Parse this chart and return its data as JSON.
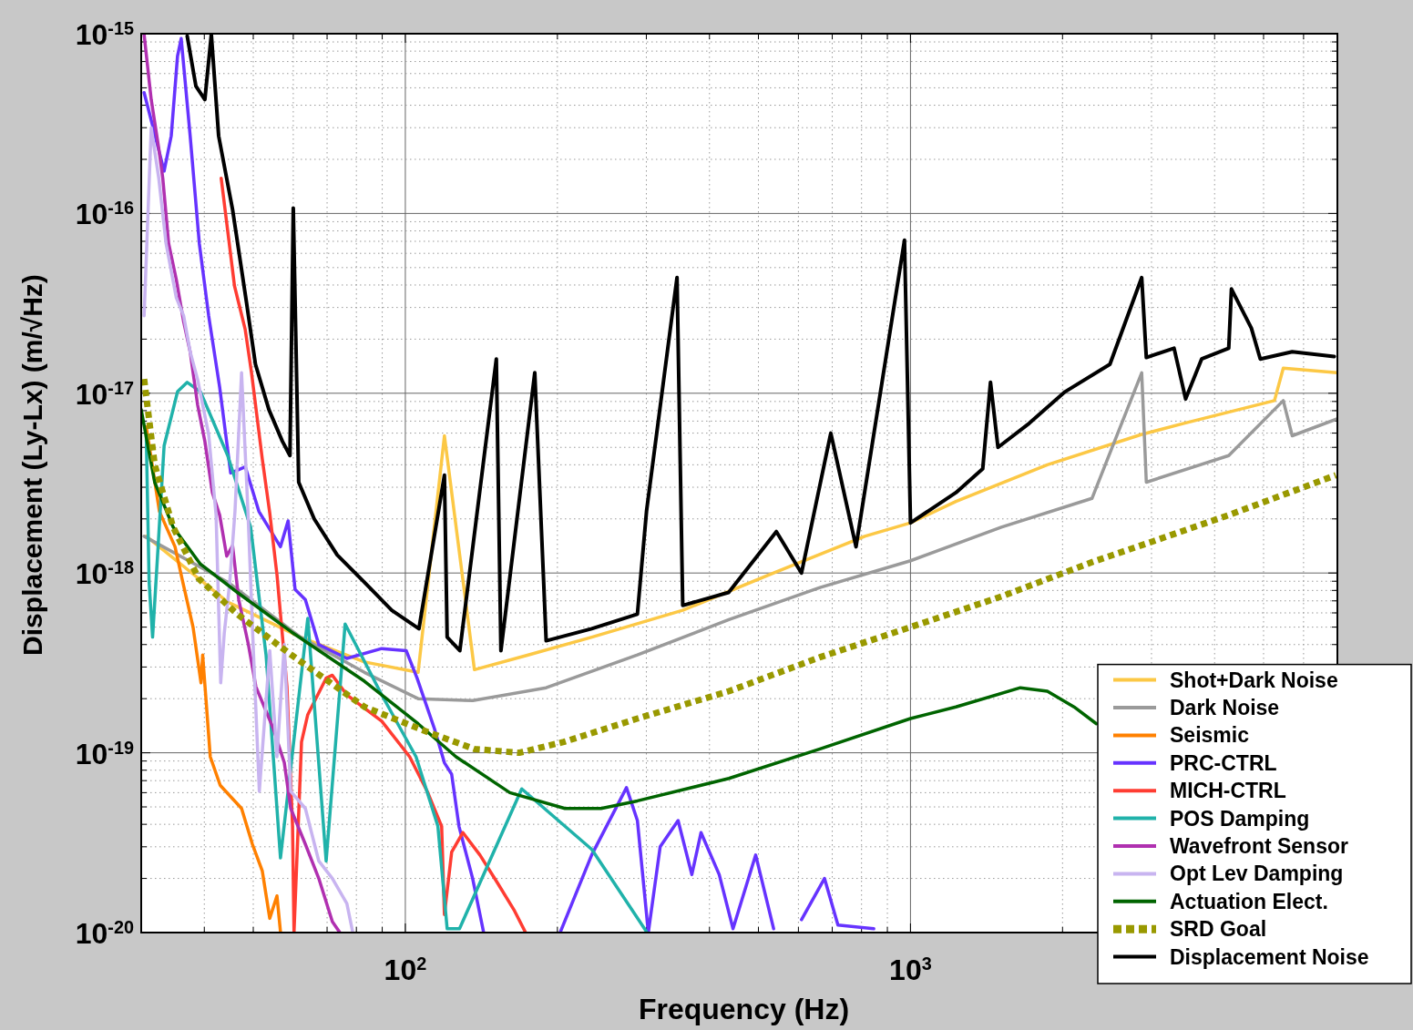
{
  "chart_data": {
    "type": "line",
    "xlabel": "Frequency (Hz)",
    "ylabel": "Displacement (Ly-Lx) (m/√Hz)",
    "log": "xy",
    "grid": true,
    "legend": "bottom right",
    "xlim": [
      30,
      7000
    ],
    "ylim": [
      1e-20,
      1e-15
    ],
    "xticks": [
      {
        "value": 40,
        "label": null
      },
      {
        "value": 50,
        "label": null
      },
      {
        "value": 60,
        "label": null
      },
      {
        "value": 70,
        "label": null
      },
      {
        "value": 80,
        "label": null
      },
      {
        "value": 90,
        "label": null
      },
      {
        "value": 100,
        "label": "10$^{2}$"
      },
      {
        "value": 200,
        "label": null
      },
      {
        "value": 300,
        "label": null
      },
      {
        "value": 400,
        "label": null
      },
      {
        "value": 500,
        "label": null
      },
      {
        "value": 600,
        "label": null
      },
      {
        "value": 700,
        "label": null
      },
      {
        "value": 800,
        "label": null
      },
      {
        "value": 900,
        "label": null
      },
      {
        "value": 1000,
        "label": "10$^{3}$"
      },
      {
        "value": 2000,
        "label": null
      },
      {
        "value": 3000,
        "label": null
      },
      {
        "value": 4000,
        "label": null
      },
      {
        "value": 5000,
        "label": null
      },
      {
        "value": 6000,
        "label": null
      },
      {
        "value": 7000,
        "label": null
      }
    ],
    "yticks": [
      {
        "value": 1e-20,
        "label": "10$^{-20}$"
      },
      {
        "value": 2e-20,
        "label": null
      },
      {
        "value": 3e-20,
        "label": null
      },
      {
        "value": 4e-20,
        "label": null
      },
      {
        "value": 5e-20,
        "label": null
      },
      {
        "value": 6e-20,
        "label": null
      },
      {
        "value": 7e-20,
        "label": null
      },
      {
        "value": 8e-20,
        "label": null
      },
      {
        "value": 9e-20,
        "label": null
      },
      {
        "value": 1e-19,
        "label": "10$^{-19}$"
      },
      {
        "value": 2e-19,
        "label": null
      },
      {
        "value": 3e-19,
        "label": null
      },
      {
        "value": 4e-19,
        "label": null
      },
      {
        "value": 5e-19,
        "label": null
      },
      {
        "value": 6e-19,
        "label": null
      },
      {
        "value": 7e-19,
        "label": null
      },
      {
        "value": 8e-19,
        "label": null
      },
      {
        "value": 9e-19,
        "label": null
      },
      {
        "value": 1e-18,
        "label": "10$^{-18}$"
      },
      {
        "value": 2e-18,
        "label": null
      },
      {
        "value": 3e-18,
        "label": null
      },
      {
        "value": 4e-18,
        "label": null
      },
      {
        "value": 5e-18,
        "label": null
      },
      {
        "value": 6e-18,
        "label": null
      },
      {
        "value": 7e-18,
        "label": null
      },
      {
        "value": 8e-18,
        "label": null
      },
      {
        "value": 9e-18,
        "label": null
      },
      {
        "value": 1e-17,
        "label": "10$^{-17}$"
      },
      {
        "value": 2e-17,
        "label": null
      },
      {
        "value": 3e-17,
        "label": null
      },
      {
        "value": 4e-17,
        "label": null
      },
      {
        "value": 5e-17,
        "label": null
      },
      {
        "value": 6e-17,
        "label": null
      },
      {
        "value": 7e-17,
        "label": null
      },
      {
        "value": 8e-17,
        "label": null
      },
      {
        "value": 9e-17,
        "label": null
      },
      {
        "value": 1e-16,
        "label": "10$^{-16}$"
      },
      {
        "value": 2e-16,
        "label": null
      },
      {
        "value": 3e-16,
        "label": null
      },
      {
        "value": 4e-16,
        "label": null
      },
      {
        "value": 5e-16,
        "label": null
      },
      {
        "value": 6e-16,
        "label": null
      },
      {
        "value": 7e-16,
        "label": null
      },
      {
        "value": 8e-16,
        "label": null
      },
      {
        "value": 9e-16,
        "label": null
      },
      {
        "value": 1e-15,
        "label": "10$^{-15}$"
      }
    ],
    "series": [
      {
        "name": "Shot+Dark Noise",
        "color": "#fcc845",
        "x": [
          30.7,
          44.5,
          62,
          83,
          106,
          119.5,
          137,
          175,
          234,
          354,
          536,
          812,
          1000,
          1230,
          1866,
          2869,
          3477,
          5255,
          5470,
          6990
        ],
        "values": [
          1.6e-18,
          6.9e-19,
          4.4e-19,
          3.2e-19,
          2.8e-19,
          5.8e-18,
          2.9e-19,
          3.5e-19,
          4.4e-19,
          6.2e-19,
          1e-18,
          1.6e-18,
          1.9e-18,
          2.5e-18,
          4e-18,
          5.9e-18,
          6.8e-18,
          9.1e-18,
          1.38e-17,
          1.3e-17
        ]
      },
      {
        "name": "Dark Noise",
        "color": "#9a9a9a",
        "x": [
          30.4,
          44.5,
          62,
          83,
          106,
          136,
          190,
          288,
          437,
          662,
          1000,
          1513,
          2287,
          2869,
          2930,
          4266,
          5470,
          5698,
          6990
        ],
        "values": [
          1.6e-18,
          8.9e-19,
          4.4e-19,
          2.8e-19,
          2e-19,
          1.95e-19,
          2.3e-19,
          3.5e-19,
          5.5e-19,
          8.3e-19,
          1.17e-18,
          1.8e-18,
          2.6e-18,
          1.3e-17,
          3.2e-18,
          4.5e-18,
          9.1e-18,
          5.8e-18,
          7.2e-18
        ]
      },
      {
        "name": "Seismic",
        "color": "#ff8000",
        "x": [
          30.7,
          32.6,
          35,
          36.2,
          38,
          39.4,
          39.7,
          41.1,
          43,
          47.4,
          49.8,
          52.1,
          53.9,
          55.7,
          56.6
        ],
        "values": [
          6.5e-18,
          2.2e-18,
          1.4e-18,
          9.1e-19,
          5e-19,
          2.45e-19,
          3.5e-19,
          9.5e-20,
          6.6e-20,
          4.9e-20,
          3.1e-20,
          2.2e-20,
          1.2e-20,
          1.6e-20,
          1.01e-20
        ]
      },
      {
        "name": "PRC-CTRL",
        "color": "#6633ff",
        "x": [
          30.4,
          31.4,
          33.3,
          34.4,
          35.4,
          36,
          37.5,
          39.1,
          40.8,
          42.9,
          45.1,
          48.2,
          51.3,
          56.6,
          58.6,
          60.5,
          63.4,
          67.4,
          76.6,
          89.8,
          100.4,
          105.5,
          114.2,
          119.5,
          123.5,
          127.7,
          135.9,
          142.9,
          170,
          202.5,
          233.8,
          274,
          288,
          302.7,
          319.5,
          346.7,
          369.1,
          384.9,
          418.2,
          445.3,
          493.8,
          535.9,
          570,
          608.5,
          675.7,
          718.5,
          846
        ],
        "values": [
          4.7e-16,
          3.3e-16,
          1.72e-16,
          2.7e-16,
          7.5e-16,
          9.4e-16,
          2.7e-16,
          6.8e-17,
          2.7e-17,
          1.08e-17,
          3.6e-18,
          3.9e-18,
          2.2e-18,
          1.4e-18,
          1.95e-18,
          8.1e-19,
          7.1e-19,
          4e-19,
          3.35e-19,
          3.8e-19,
          3.7e-19,
          2.6e-19,
          1.36e-19,
          8.8e-20,
          7.6e-20,
          3.9e-20,
          2e-20,
          1e-20,
          null,
          1e-20,
          2.7e-20,
          6.4e-20,
          4.2e-20,
          1e-20,
          3e-20,
          4.2e-20,
          2.1e-20,
          3.6e-20,
          2.1e-20,
          1.05e-20,
          2.7e-20,
          1.05e-20,
          null,
          1.18e-20,
          2e-20,
          1.1e-20,
          1.05e-20
        ]
      },
      {
        "name": "MICH-CTRL",
        "color": "#ff3c32",
        "x": [
          43.2,
          45.9,
          48.2,
          49.6,
          52.1,
          53.9,
          55.7,
          58.3,
          59.8,
          60.2,
          62.3,
          64.1,
          69.7,
          71.7,
          76.6,
          89.8,
          102,
          110.5,
          118,
          119.5,
          123.5,
          130,
          140.5,
          152,
          164.5,
          173
        ],
        "values": [
          1.57e-16,
          3.95e-17,
          2.26e-17,
          1.3e-17,
          4.3e-18,
          2.16e-18,
          9.8e-19,
          2.33e-19,
          3.9e-20,
          1e-20,
          1.15e-19,
          1.63e-19,
          2.6e-19,
          2.7e-19,
          2.1e-19,
          1.5e-19,
          9.5e-20,
          6.1e-20,
          3.9e-20,
          1.26e-20,
          2.8e-20,
          3.6e-20,
          2.7e-20,
          1.9e-20,
          1.32e-20,
          1e-20
        ]
      },
      {
        "name": "POS Damping",
        "color": "#20b2aa",
        "x": [
          30.7,
          31.1,
          31.6,
          32.4,
          33.3,
          35.4,
          37,
          39.3,
          44.5,
          49.4,
          53,
          56.6,
          64.1,
          69.7,
          76,
          89.8,
          105,
          116,
          121,
          128,
          170,
          234,
          301
        ],
        "values": [
          5.8e-18,
          8.9e-19,
          4.4e-19,
          1.4e-18,
          5.1e-18,
          1.02e-17,
          1.15e-17,
          1.02e-17,
          4.5e-18,
          1.8e-18,
          3.5e-19,
          2.6e-20,
          5.6e-19,
          2.5e-20,
          5.2e-19,
          2.1e-19,
          9.5e-20,
          3.9e-20,
          1.05e-20,
          1.05e-20,
          6.3e-20,
          2.9e-20,
          1e-20
        ]
      },
      {
        "name": "Wavefront Sensor",
        "color": "#b030b0",
        "x": [
          30.4,
          31.4,
          32.5,
          33.1,
          34,
          35.2,
          36.4,
          37.5,
          38.8,
          40.1,
          41.5,
          42.9,
          44.3,
          45.5,
          46.8,
          48.9,
          50.6,
          54.8,
          57.6,
          59.3,
          63.4,
          67.4,
          71.7,
          74.2
        ],
        "values": [
          9.9e-16,
          4.3e-16,
          2.3e-16,
          1.57e-16,
          6.8e-17,
          4.3e-17,
          2.5e-17,
          1.7e-17,
          8.6e-18,
          5.4e-18,
          2.8e-18,
          2.1e-18,
          1.24e-18,
          1.42e-18,
          7.1e-19,
          4e-19,
          2.33e-19,
          1.36e-19,
          8.8e-20,
          4.9e-20,
          3.1e-20,
          2e-20,
          1.15e-20,
          1e-20
        ]
      },
      {
        "name": "Opt Lev Damping",
        "color": "#c8b4f0",
        "x": [
          30.4,
          31.4,
          32.5,
          33.6,
          35.2,
          36.4,
          37.5,
          38.8,
          40.8,
          42.2,
          43.1,
          43.8,
          44.9,
          46,
          47.4,
          48.8,
          49.9,
          51.4,
          53.9,
          55.7,
          57.6,
          59.3,
          63.4,
          67.4,
          71.7,
          76.6,
          78.7
        ],
        "values": [
          2.7e-17,
          3e-16,
          1.57e-16,
          6.8e-17,
          3.4e-17,
          2.7e-17,
          1.7e-17,
          1.19e-17,
          5.9e-18,
          2.1e-18,
          2.45e-19,
          4.6e-19,
          8.8e-19,
          2.2e-18,
          1.3e-17,
          2.2e-18,
          4.4e-19,
          6.1e-20,
          3.7e-19,
          9.5e-20,
          4e-19,
          6.1e-20,
          4.9e-20,
          2.5e-20,
          2e-20,
          1.45e-20,
          1e-20
        ]
      },
      {
        "name": "Actuation Elect.",
        "color": "#006400",
        "x": [
          30,
          31.9,
          34.7,
          39.3,
          46.5,
          59.5,
          83,
          106,
          126,
          161,
          207,
          244,
          288,
          437,
          662,
          1000,
          1230,
          1650,
          1866,
          2107,
          2334
        ],
        "values": [
          8.1e-18,
          3.2e-18,
          1.8e-18,
          1.12e-18,
          7.8e-19,
          4.7e-19,
          2.5e-19,
          1.45e-19,
          9.5e-20,
          6e-20,
          4.9e-20,
          4.9e-20,
          5.4e-20,
          7.2e-20,
          1.05e-19,
          1.55e-19,
          1.8e-19,
          2.3e-19,
          2.2e-19,
          1.8e-19,
          1.45e-19
        ]
      },
      {
        "name": "SRD Goal",
        "color": "#999900",
        "line_style": "dashed",
        "x": [
          30.4,
          31.9,
          34.7,
          39,
          46.5,
          59.5,
          83,
          111,
          137,
          168,
          206,
          288,
          437,
          662,
          1000,
          1513,
          2287,
          3019,
          4266,
          6950
        ],
        "values": [
          1.2e-17,
          4e-18,
          1.8e-18,
          9.3e-19,
          5.9e-19,
          3.5e-19,
          1.8e-19,
          1.3e-19,
          1.05e-19,
          1e-19,
          1.15e-19,
          1.55e-19,
          2.2e-19,
          3.4e-19,
          5e-19,
          7.4e-19,
          1.15e-18,
          1.5e-18,
          2.1e-18,
          3.5e-18
        ]
      },
      {
        "name": "Displacement Noise",
        "color": "#000000",
        "x": [
          37,
          38.5,
          40.1,
          41.3,
          42.7,
          45.5,
          48.4,
          50.5,
          53.7,
          57.1,
          59.1,
          60,
          61.5,
          66,
          73.3,
          82.9,
          94,
          106.4,
          119.5,
          121,
          128.2,
          151.4,
          154.6,
          180.4,
          190,
          233.8,
          288,
          300.2,
          345,
          354.1,
          436.6,
          542.6,
          608.5,
          695.4,
          780.1,
          973,
          1000,
          1230,
          1390,
          1440,
          1490,
          1718,
          2024,
          2482,
          2869,
          2930,
          3325,
          3505,
          3770,
          4266,
          4319,
          4730,
          4926,
          5698,
          6900
        ],
        "values": [
          9.7e-16,
          5.1e-16,
          4.3e-16,
          9.9e-16,
          2.7e-16,
          1.05e-16,
          3.3e-17,
          1.45e-17,
          8.1e-18,
          5.4e-18,
          4.5e-18,
          1.07e-16,
          3.2e-18,
          2e-18,
          1.26e-18,
          8.9e-19,
          6.2e-19,
          4.9e-19,
          3.5e-18,
          4.4e-19,
          3.7e-19,
          1.55e-17,
          3.7e-19,
          1.3e-17,
          4.2e-19,
          4.9e-19,
          5.9e-19,
          2.2e-18,
          4.4e-17,
          6.6e-19,
          7.8e-19,
          1.7e-18,
          1e-18,
          6e-18,
          1.4e-18,
          7.1e-17,
          1.9e-18,
          2.8e-18,
          3.8e-18,
          1.15e-17,
          5e-18,
          6.8e-18,
          1.02e-17,
          1.45e-17,
          4.4e-17,
          1.58e-17,
          1.78e-17,
          9.3e-18,
          1.55e-17,
          1.78e-17,
          3.8e-17,
          2.3e-17,
          1.55e-17,
          1.7e-17,
          1.6e-17
        ]
      }
    ]
  }
}
